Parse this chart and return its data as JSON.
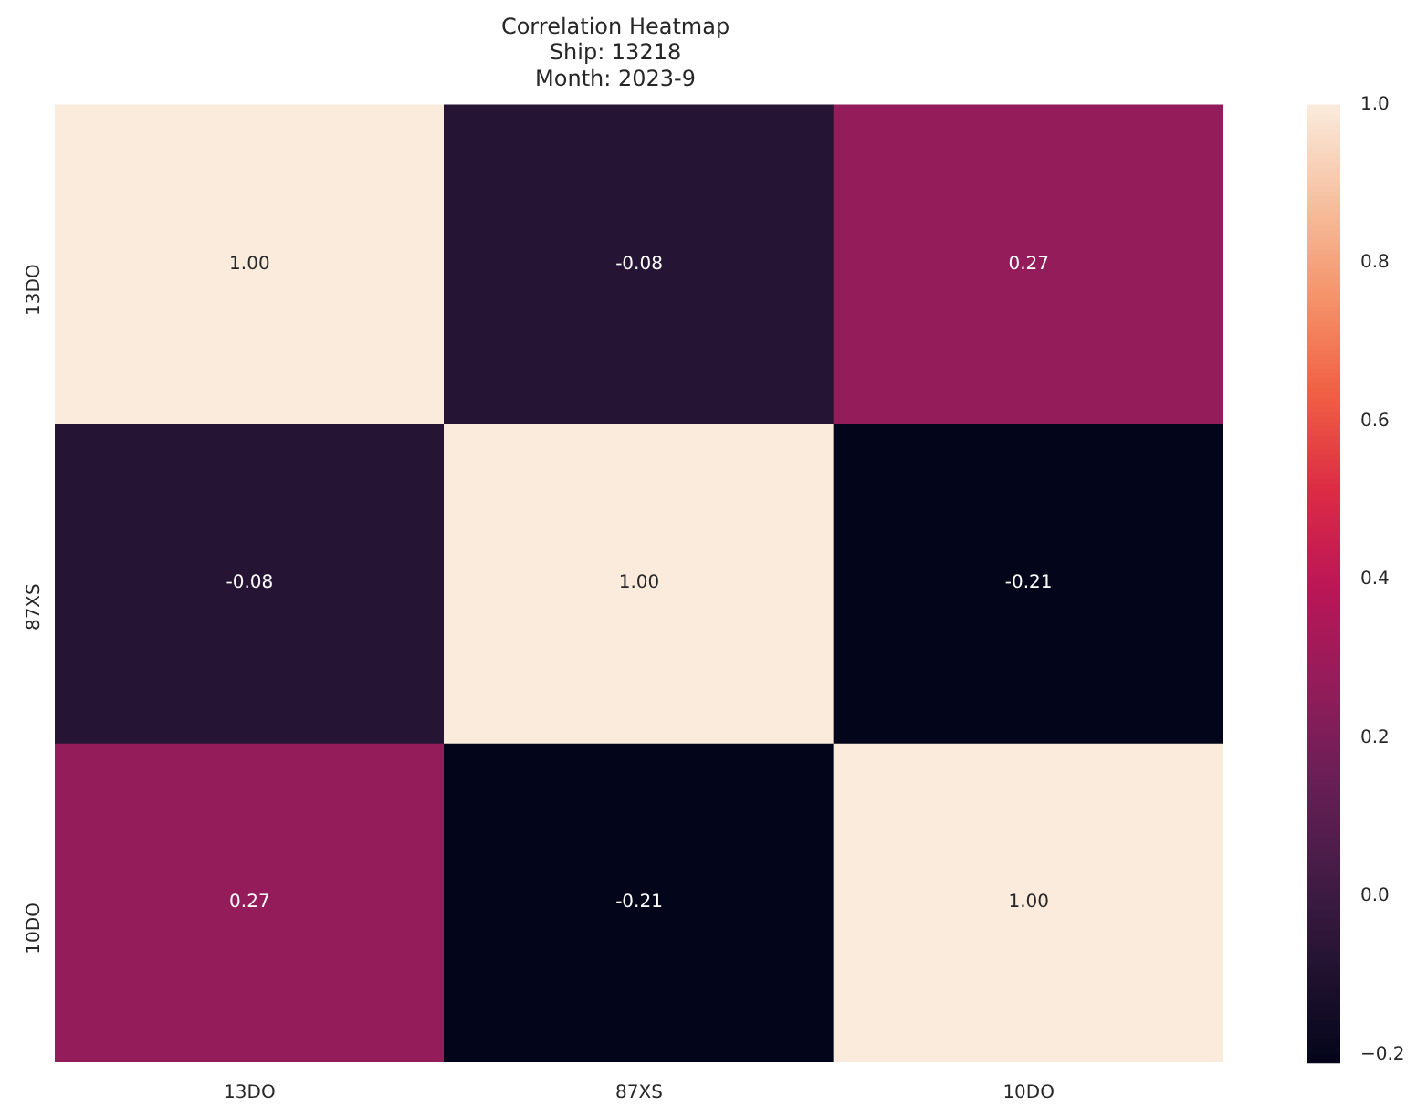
{
  "chart_data": {
    "type": "heatmap",
    "title": "Correlation Heatmap\nShip: 13218\nMonth: 2023-9",
    "categories": [
      "13DO",
      "87XS",
      "10DO"
    ],
    "y_categories": [
      "13DO",
      "87XS",
      "10DO"
    ],
    "cells": [
      [
        1.0,
        -0.08,
        0.27
      ],
      [
        -0.08,
        1.0,
        -0.21
      ],
      [
        0.27,
        -0.21,
        1.0
      ]
    ],
    "cell_labels": [
      [
        "1.00",
        "-0.08",
        "0.27"
      ],
      [
        "-0.08",
        "1.00",
        "-0.21"
      ],
      [
        "0.27",
        "-0.21",
        "1.00"
      ]
    ],
    "clim": [
      -0.21,
      1.0
    ],
    "cticks": [
      {
        "value": -0.2,
        "label": "−0.2"
      },
      {
        "value": 0,
        "label": "0.0"
      },
      {
        "value": 0.2,
        "label": "0.2"
      },
      {
        "value": 0.4,
        "label": "0.4"
      },
      {
        "value": 0.6,
        "label": "0.6"
      },
      {
        "value": 0.8,
        "label": "0.8"
      },
      {
        "value": 1.0,
        "label": "1.0"
      }
    ]
  }
}
